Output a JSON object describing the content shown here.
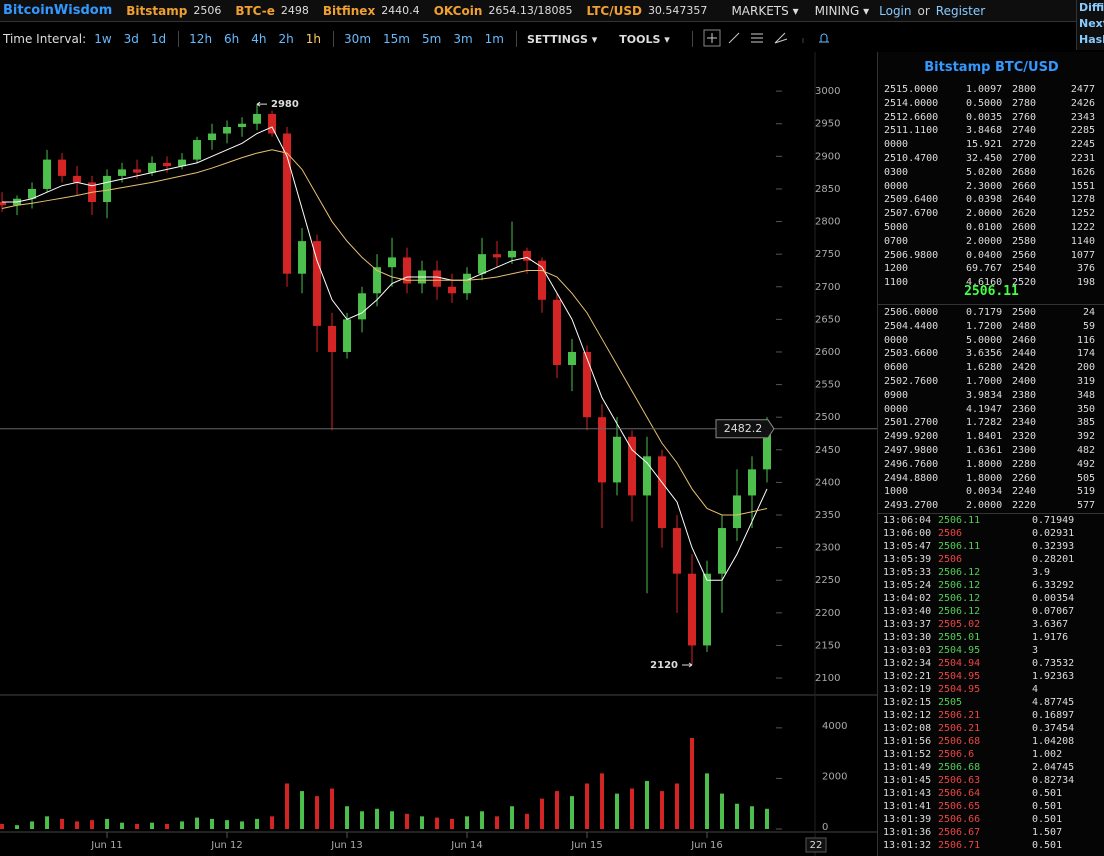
{
  "header": {
    "brand": "BitcoinWisdom",
    "markets": [
      {
        "name": "Bitstamp",
        "price": "2506"
      },
      {
        "name": "BTC-e",
        "price": "2498"
      },
      {
        "name": "Bitfinex",
        "price": "2440.4"
      },
      {
        "name": "OKCoin",
        "price": "2654.13/18085"
      },
      {
        "name": "LTC/USD",
        "price": "30.547357"
      }
    ],
    "menus": [
      "MARKETS",
      "MINING"
    ],
    "login": "Login",
    "or": "or",
    "register": "Register",
    "edge": [
      "Diffic",
      "Next",
      "Hash"
    ]
  },
  "toolbar": {
    "label": "Time Interval:",
    "intervals": [
      "1w",
      "3d",
      "1d",
      "12h",
      "6h",
      "4h",
      "2h",
      "1h",
      "30m",
      "15m",
      "5m",
      "3m",
      "1m"
    ],
    "selected": "1h",
    "settings": "SETTINGS",
    "tools": "TOOLS"
  },
  "chart_data": {
    "type": "candlestick",
    "xlim": [
      10.108,
      16.9
    ],
    "xticks": [
      {
        "value": 11,
        "label": "Jun 11"
      },
      {
        "value": 12,
        "label": "Jun 12"
      },
      {
        "value": 13,
        "label": "Jun 13"
      },
      {
        "value": 14,
        "label": "Jun 14"
      },
      {
        "value": 15,
        "label": "Jun 15"
      },
      {
        "value": 16,
        "label": "Jun 16"
      }
    ],
    "ylim": [
      2074,
      3060
    ],
    "yticks": [
      2100,
      2150,
      2200,
      2250,
      2300,
      2350,
      2400,
      2450,
      2500,
      2550,
      2600,
      2650,
      2700,
      2750,
      2800,
      2850,
      2900,
      2950,
      3000
    ],
    "up_color": "#4cbf4c",
    "down_color": "#d42424",
    "x": [
      10.125,
      10.25,
      10.375,
      10.5,
      10.625,
      10.75,
      10.875,
      11.0,
      11.125,
      11.25,
      11.375,
      11.5,
      11.625,
      11.75,
      11.875,
      12.0,
      12.125,
      12.25,
      12.375,
      12.5,
      12.625,
      12.75,
      12.875,
      13.0,
      13.125,
      13.25,
      13.375,
      13.5,
      13.625,
      13.75,
      13.875,
      14.0,
      14.125,
      14.25,
      14.375,
      14.5,
      14.625,
      14.75,
      14.875,
      15.0,
      15.125,
      15.25,
      15.375,
      15.5,
      15.625,
      15.75,
      15.875,
      16.0,
      16.125,
      16.25,
      16.375,
      16.5
    ],
    "ohlc": [
      [
        2830,
        2845,
        2815,
        2825
      ],
      [
        2825,
        2840,
        2810,
        2835
      ],
      [
        2835,
        2860,
        2820,
        2850
      ],
      [
        2850,
        2910,
        2845,
        2895
      ],
      [
        2895,
        2905,
        2860,
        2870
      ],
      [
        2870,
        2885,
        2840,
        2860
      ],
      [
        2860,
        2870,
        2810,
        2830
      ],
      [
        2830,
        2880,
        2805,
        2870
      ],
      [
        2870,
        2890,
        2860,
        2880
      ],
      [
        2880,
        2895,
        2865,
        2875
      ],
      [
        2875,
        2900,
        2870,
        2890
      ],
      [
        2890,
        2900,
        2875,
        2885
      ],
      [
        2885,
        2905,
        2880,
        2895
      ],
      [
        2895,
        2930,
        2890,
        2925
      ],
      [
        2925,
        2950,
        2910,
        2935
      ],
      [
        2935,
        2955,
        2920,
        2945
      ],
      [
        2945,
        2960,
        2930,
        2950
      ],
      [
        2950,
        2980,
        2940,
        2965
      ],
      [
        2965,
        2970,
        2930,
        2935
      ],
      [
        2935,
        2945,
        2700,
        2720
      ],
      [
        2720,
        2790,
        2690,
        2770
      ],
      [
        2770,
        2780,
        2600,
        2640
      ],
      [
        2640,
        2660,
        2480,
        2600
      ],
      [
        2600,
        2660,
        2590,
        2650
      ],
      [
        2650,
        2700,
        2630,
        2690
      ],
      [
        2690,
        2750,
        2670,
        2730
      ],
      [
        2730,
        2775,
        2700,
        2745
      ],
      [
        2745,
        2760,
        2690,
        2705
      ],
      [
        2705,
        2740,
        2690,
        2725
      ],
      [
        2725,
        2740,
        2680,
        2700
      ],
      [
        2700,
        2720,
        2675,
        2690
      ],
      [
        2690,
        2730,
        2680,
        2720
      ],
      [
        2720,
        2775,
        2710,
        2750
      ],
      [
        2750,
        2770,
        2730,
        2745
      ],
      [
        2745,
        2800,
        2735,
        2755
      ],
      [
        2755,
        2760,
        2720,
        2740
      ],
      [
        2740,
        2745,
        2660,
        2680
      ],
      [
        2680,
        2690,
        2560,
        2580
      ],
      [
        2580,
        2620,
        2540,
        2600
      ],
      [
        2600,
        2610,
        2480,
        2500
      ],
      [
        2500,
        2520,
        2330,
        2400
      ],
      [
        2400,
        2500,
        2380,
        2470
      ],
      [
        2470,
        2480,
        2340,
        2380
      ],
      [
        2380,
        2470,
        2230,
        2440
      ],
      [
        2440,
        2450,
        2300,
        2330
      ],
      [
        2330,
        2350,
        2200,
        2260
      ],
      [
        2260,
        2290,
        2120,
        2150
      ],
      [
        2150,
        2280,
        2140,
        2260
      ],
      [
        2260,
        2350,
        2200,
        2330
      ],
      [
        2330,
        2420,
        2310,
        2380
      ],
      [
        2380,
        2440,
        2330,
        2420
      ],
      [
        2420,
        2500,
        2400,
        2490
      ]
    ],
    "series": [
      {
        "color": "#ffffff",
        "values": [
          2830,
          2830,
          2835,
          2845,
          2855,
          2860,
          2855,
          2860,
          2865,
          2870,
          2875,
          2880,
          2885,
          2890,
          2900,
          2910,
          2920,
          2935,
          2945,
          2900,
          2820,
          2740,
          2680,
          2650,
          2660,
          2680,
          2705,
          2715,
          2715,
          2715,
          2710,
          2710,
          2720,
          2730,
          2740,
          2745,
          2730,
          2690,
          2650,
          2590,
          2530,
          2490,
          2450,
          2430,
          2400,
          2370,
          2300,
          2250,
          2250,
          2290,
          2340,
          2390
        ]
      },
      {
        "color": "#e8c070",
        "values": [
          2820,
          2825,
          2828,
          2832,
          2836,
          2840,
          2845,
          2848,
          2852,
          2856,
          2860,
          2865,
          2870,
          2875,
          2882,
          2890,
          2898,
          2905,
          2910,
          2905,
          2880,
          2840,
          2800,
          2770,
          2745,
          2725,
          2715,
          2710,
          2710,
          2710,
          2710,
          2710,
          2712,
          2715,
          2720,
          2725,
          2725,
          2715,
          2690,
          2660,
          2620,
          2580,
          2540,
          2500,
          2460,
          2430,
          2390,
          2360,
          2350,
          2350,
          2355,
          2360
        ]
      }
    ],
    "volume": [
      200,
      150,
      300,
      500,
      400,
      300,
      350,
      400,
      250,
      200,
      250,
      200,
      300,
      450,
      400,
      350,
      300,
      400,
      500,
      1800,
      1500,
      1300,
      1600,
      900,
      700,
      800,
      700,
      600,
      500,
      450,
      400,
      500,
      700,
      500,
      900,
      600,
      1200,
      1500,
      1300,
      1800,
      2200,
      1400,
      1600,
      1900,
      1500,
      1800,
      3600,
      2200,
      1400,
      1000,
      900,
      800
    ],
    "volume_ylim": [
      0,
      5300
    ],
    "volume_yticks": [
      0,
      2000,
      4000
    ],
    "annotations": [
      {
        "label": "2980",
        "x": 12.25,
        "value": 2980
      },
      {
        "label": "2120",
        "x": 15.875,
        "value": 2120
      }
    ],
    "last_price": 2482.2,
    "corner_label": "22"
  },
  "orderbook": {
    "title": "Bitstamp BTC/USD",
    "asks": [
      [
        "2515.0000",
        "1.0097",
        "2800",
        "2477"
      ],
      [
        "2514.0000",
        "0.5000",
        "2780",
        "2426"
      ],
      [
        "2512.6600",
        "0.0035",
        "2760",
        "2343"
      ],
      [
        "2511.1100",
        "3.8468",
        "2740",
        "2285"
      ],
      [
        "0000",
        "15.921",
        "2720",
        "2245"
      ],
      [
        "2510.4700",
        "32.450",
        "2700",
        "2231"
      ],
      [
        "0300",
        "5.0200",
        "2680",
        "1626"
      ],
      [
        "0000",
        "2.3000",
        "2660",
        "1551"
      ],
      [
        "2509.6400",
        "0.0398",
        "2640",
        "1278"
      ],
      [
        "2507.6700",
        "2.0000",
        "2620",
        "1252"
      ],
      [
        "5000",
        "0.0100",
        "2600",
        "1222"
      ],
      [
        "0700",
        "2.0000",
        "2580",
        "1140"
      ],
      [
        "2506.9800",
        "0.0400",
        "2560",
        "1077"
      ],
      [
        "1200",
        "69.767",
        "2540",
        "376"
      ],
      [
        "1100",
        "4.6160",
        "2520",
        "198"
      ]
    ],
    "mid": "2506.11",
    "bids": [
      [
        "2506.0000",
        "0.7179",
        "2500",
        "24"
      ],
      [
        "2504.4400",
        "1.7200",
        "2480",
        "59"
      ],
      [
        "0000",
        "5.0000",
        "2460",
        "116"
      ],
      [
        "2503.6600",
        "3.6356",
        "2440",
        "174"
      ],
      [
        "0600",
        "1.6280",
        "2420",
        "200"
      ],
      [
        "2502.7600",
        "1.7000",
        "2400",
        "319"
      ],
      [
        "0900",
        "3.9834",
        "2380",
        "348"
      ],
      [
        "0000",
        "4.1947",
        "2360",
        "350"
      ],
      [
        "2501.2700",
        "1.7282",
        "2340",
        "385"
      ],
      [
        "2499.9200",
        "1.8401",
        "2320",
        "392"
      ],
      [
        "2497.9800",
        "1.6361",
        "2300",
        "482"
      ],
      [
        "2496.7600",
        "1.8000",
        "2280",
        "492"
      ],
      [
        "2494.8800",
        "1.8000",
        "2260",
        "505"
      ],
      [
        "1000",
        "0.0034",
        "2240",
        "519"
      ],
      [
        "2493.2700",
        "2.0000",
        "2220",
        "577"
      ]
    ]
  },
  "trades": [
    {
      "time": "13:06:04",
      "price": "2506.11",
      "amount": "0.71949",
      "color": "#5c5"
    },
    {
      "time": "13:06:00",
      "price": "2506",
      "amount": "0.02931",
      "color": "#e44"
    },
    {
      "time": "13:05:47",
      "price": "2506.11",
      "amount": "0.32393",
      "color": "#5c5"
    },
    {
      "time": "13:05:39",
      "price": "2506",
      "amount": "0.28201",
      "color": "#e44"
    },
    {
      "time": "13:05:33",
      "price": "2506.12",
      "amount": "3.9",
      "color": "#5c5"
    },
    {
      "time": "13:05:24",
      "price": "2506.12",
      "amount": "6.33292",
      "color": "#5c5"
    },
    {
      "time": "13:04:02",
      "price": "2506.12",
      "amount": "0.00354",
      "color": "#5c5"
    },
    {
      "time": "13:03:40",
      "price": "2506.12",
      "amount": "0.07067",
      "color": "#5c5"
    },
    {
      "time": "13:03:37",
      "price": "2505.02",
      "amount": "3.6367",
      "color": "#e44"
    },
    {
      "time": "13:03:30",
      "price": "2505.01",
      "amount": "1.9176",
      "color": "#5c5"
    },
    {
      "time": "13:03:03",
      "price": "2504.95",
      "amount": "3",
      "color": "#5c5"
    },
    {
      "time": "13:02:34",
      "price": "2504.94",
      "amount": "0.73532",
      "color": "#e44"
    },
    {
      "time": "13:02:21",
      "price": "2504.95",
      "amount": "1.92363",
      "color": "#e44"
    },
    {
      "time": "13:02:19",
      "price": "2504.95",
      "amount": "4",
      "color": "#e44"
    },
    {
      "time": "13:02:15",
      "price": "2505",
      "amount": "4.87745",
      "color": "#5c5"
    },
    {
      "time": "13:02:12",
      "price": "2506.21",
      "amount": "0.16897",
      "color": "#e44"
    },
    {
      "time": "13:02:08",
      "price": "2506.21",
      "amount": "0.37454",
      "color": "#e44"
    },
    {
      "time": "13:01:56",
      "price": "2506.68",
      "amount": "1.04208",
      "color": "#e44"
    },
    {
      "time": "13:01:52",
      "price": "2506.6",
      "amount": "1.002",
      "color": "#e44"
    },
    {
      "time": "13:01:49",
      "price": "2506.68",
      "amount": "2.04745",
      "color": "#5c5"
    },
    {
      "time": "13:01:45",
      "price": "2506.63",
      "amount": "0.82734",
      "color": "#e44"
    },
    {
      "time": "13:01:43",
      "price": "2506.64",
      "amount": "0.501",
      "color": "#e44"
    },
    {
      "time": "13:01:41",
      "price": "2506.65",
      "amount": "0.501",
      "color": "#e44"
    },
    {
      "time": "13:01:39",
      "price": "2506.66",
      "amount": "0.501",
      "color": "#e44"
    },
    {
      "time": "13:01:36",
      "price": "2506.67",
      "amount": "1.507",
      "color": "#e44"
    },
    {
      "time": "13:01:32",
      "price": "2506.71",
      "amount": "0.501",
      "color": "#e44"
    }
  ]
}
